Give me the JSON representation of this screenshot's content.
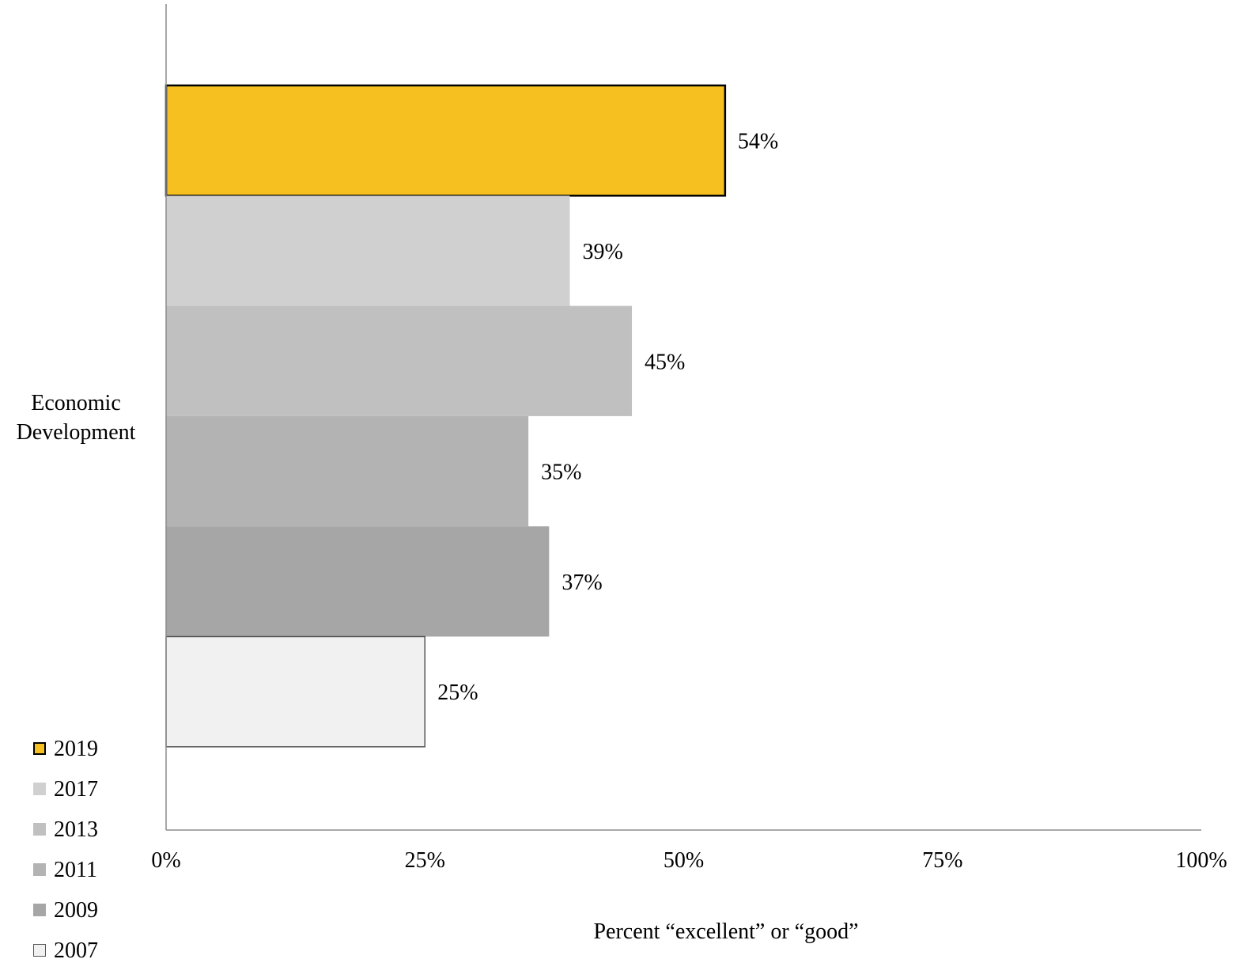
{
  "chart_data": {
    "type": "bar",
    "orientation": "horizontal",
    "category": "Economic Development",
    "categories": [
      "Economic Development"
    ],
    "series": [
      {
        "name": "2019",
        "values": [
          54
        ],
        "label": "54%",
        "color": "#F6C021",
        "outlined": true
      },
      {
        "name": "2017",
        "values": [
          39
        ],
        "label": "39%",
        "color": "#D0D0D0",
        "outlined": false
      },
      {
        "name": "2013",
        "values": [
          45
        ],
        "label": "45%",
        "color": "#C0C0C0",
        "outlined": false
      },
      {
        "name": "2011",
        "values": [
          35
        ],
        "label": "35%",
        "color": "#B3B3B3",
        "outlined": false
      },
      {
        "name": "2009",
        "values": [
          37
        ],
        "label": "37%",
        "color": "#A6A6A6",
        "outlined": false
      },
      {
        "name": "2007",
        "values": [
          25
        ],
        "label": "25%",
        "color": "#F1F1F1",
        "outlined": true
      }
    ],
    "xlabel": "Percent “excellent” or “good”",
    "xlim": [
      0,
      100
    ],
    "xticks": [
      0,
      25,
      50,
      75,
      100
    ],
    "xtick_labels": [
      "0%",
      "25%",
      "50%",
      "75%",
      "100%"
    ],
    "grid": false,
    "legend_position": "bottom-left"
  }
}
